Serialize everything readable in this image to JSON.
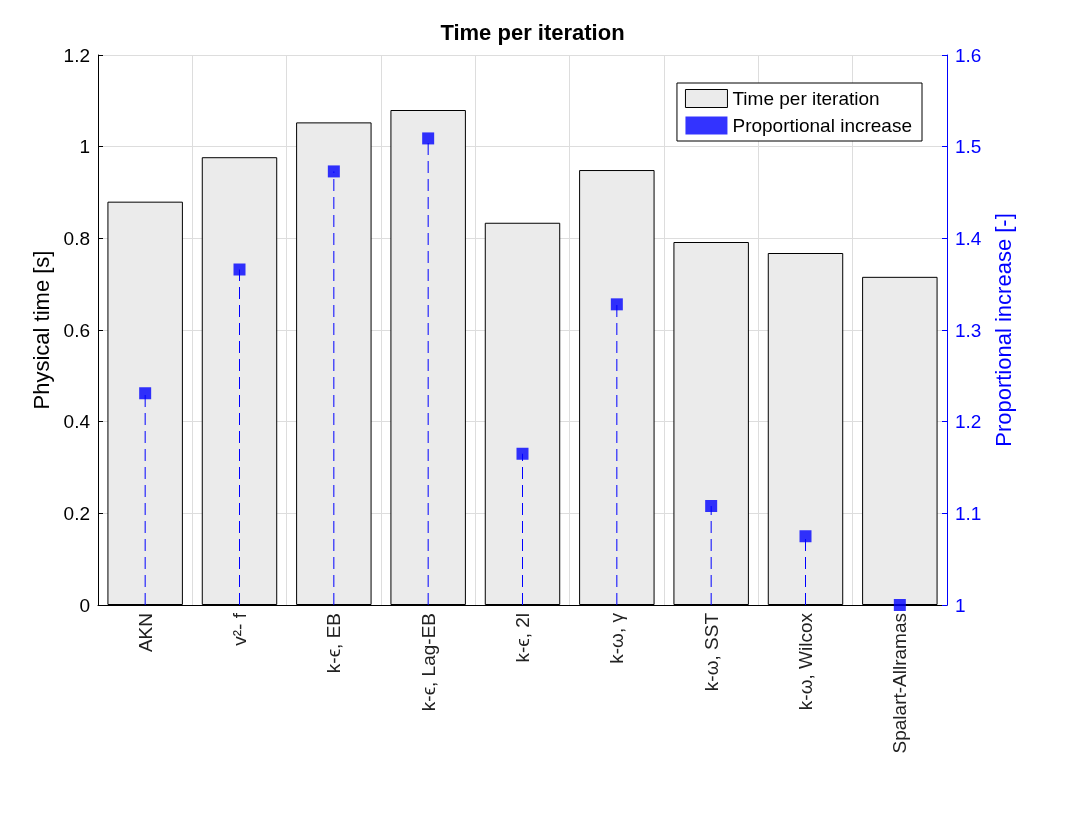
{
  "chart_data": {
    "type": "bar",
    "title": "Time per iteration",
    "ylabel": "Physical time [s]",
    "y2label": "Proportional increase [-]",
    "categories": [
      "AKN",
      "v²- f",
      "k-ϵ, EB",
      "k-ϵ, Lag-EB",
      "k-ϵ, 2l",
      "k-ω, γ",
      "k-ω, SST",
      "k-ω, Wilcox",
      "Spalart-Allramas"
    ],
    "series": [
      {
        "name": "Time per iteration",
        "color": "#ebebeb",
        "values": [
          0.88,
          0.977,
          1.053,
          1.08,
          0.834,
          0.949,
          0.792,
          0.768,
          0.716
        ]
      },
      {
        "name": "Proportional increase",
        "type": "lollipop",
        "axis": "y2",
        "color": "#0000ff",
        "line_style": "dashed",
        "marker": "square",
        "values": [
          1.231,
          1.366,
          1.473,
          1.509,
          1.165,
          1.328,
          1.108,
          1.075,
          1.0
        ]
      }
    ],
    "ylim": [
      0,
      1.2
    ],
    "yticks": [
      0,
      0.2,
      0.4,
      0.6,
      0.8,
      1,
      1.2
    ],
    "y2lim": [
      1,
      1.6
    ],
    "y2ticks": [
      1,
      1.1,
      1.2,
      1.3,
      1.4,
      1.5,
      1.6
    ],
    "grid": true,
    "legend": "top right"
  }
}
